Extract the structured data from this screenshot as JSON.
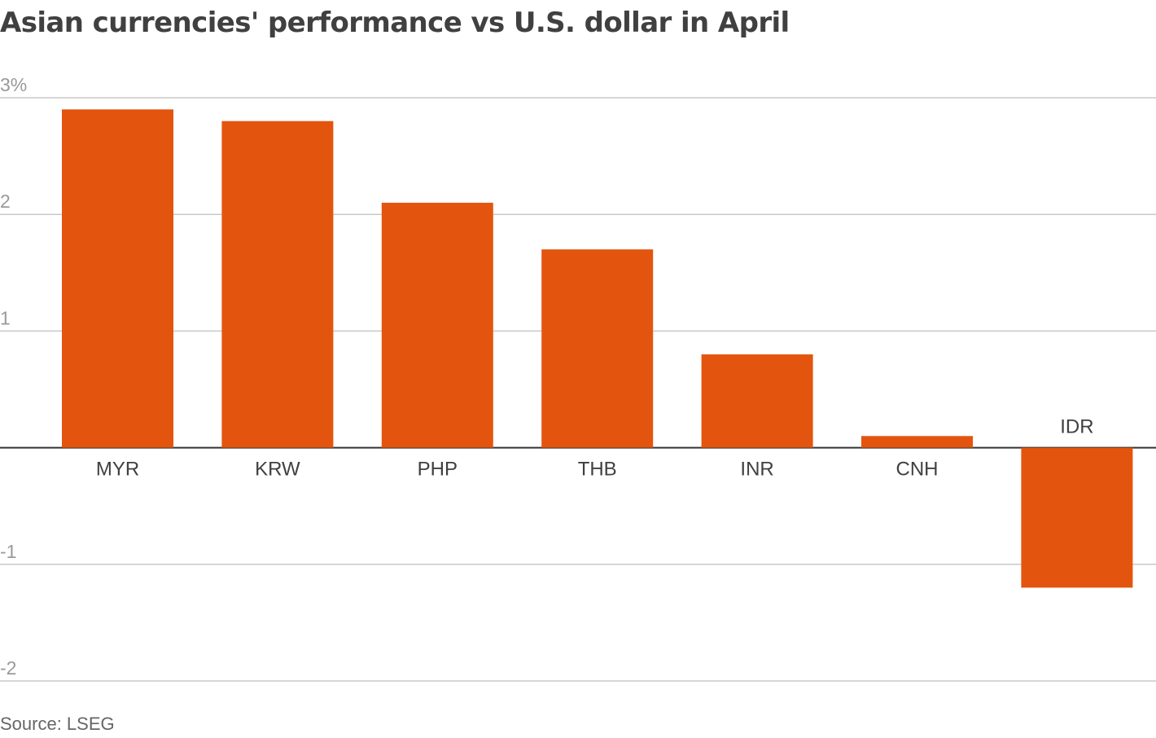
{
  "title": "Asian currencies' performance vs U.S. dollar in April",
  "source": "Source: LSEG",
  "colors": {
    "bar": "#e3550f",
    "grid": "#c8c8c8",
    "zero_line": "#333333",
    "tick_text": "#9a9a9a",
    "category_text": "#404040"
  },
  "chart_data": {
    "type": "bar",
    "categories": [
      "MYR",
      "KRW",
      "PHP",
      "THB",
      "INR",
      "CNH",
      "IDR"
    ],
    "values": [
      2.9,
      2.8,
      2.1,
      1.7,
      0.8,
      0.1,
      -1.2
    ],
    "y_ticks": [
      3,
      2,
      1,
      -1,
      -2
    ],
    "y_tick_labels": [
      "3%",
      "2",
      "1",
      "-1",
      "-2"
    ],
    "ylim": [
      -2,
      3
    ],
    "grid": true,
    "xlabel": "",
    "ylabel": ""
  }
}
